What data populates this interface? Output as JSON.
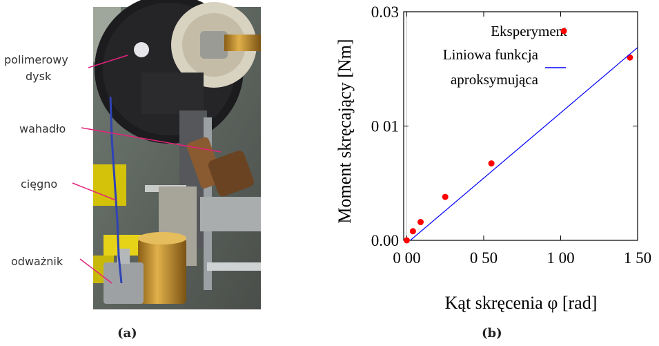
{
  "panel_a": {
    "caption": "(a)",
    "labels": {
      "disk": [
        "polimerowy",
        "dysk"
      ],
      "pendulum": "wahadło",
      "cord": "cięgno",
      "weight": "odważnik"
    },
    "colors": {
      "pointer": "#e2237a",
      "cord": "#2f43b4",
      "brass": "#c8962e"
    }
  },
  "panel_b": {
    "caption": "(b)"
  },
  "chart_data": {
    "type": "scatter",
    "xlabel": "Kąt skręcenia φ [rad]",
    "ylabel": "Moment skręcający [Nm]",
    "xlim": [
      -0.02,
      1.5
    ],
    "ylim": [
      0.0,
      0.03
    ],
    "x_ticks": [
      0.0,
      0.5,
      1.0,
      1.5
    ],
    "x_tick_labels": [
      "0 00",
      "0 50",
      "1 00",
      "1 50"
    ],
    "y_ticks": [
      0.0,
      0.015,
      0.03
    ],
    "y_tick_labels": [
      "0.00",
      "0 01",
      "0.03"
    ],
    "series": [
      {
        "name": "Eksperyment",
        "kind": "scatter",
        "color": "#ff0000",
        "x": [
          0.0,
          0.04,
          0.09,
          0.25,
          0.55,
          1.45
        ],
        "y": [
          0.0,
          0.0012,
          0.0024,
          0.0057,
          0.0101,
          0.024
        ]
      },
      {
        "name": "Liniowa funkcja aproksymująca",
        "legend_lines": [
          "Liniowa funkcja",
          "aproksymująca"
        ],
        "kind": "line",
        "color": "#0000ff",
        "x": [
          0.0,
          1.5
        ],
        "y": [
          -0.0004,
          0.0253
        ]
      }
    ],
    "legend_position": "top-right",
    "grid": false
  }
}
